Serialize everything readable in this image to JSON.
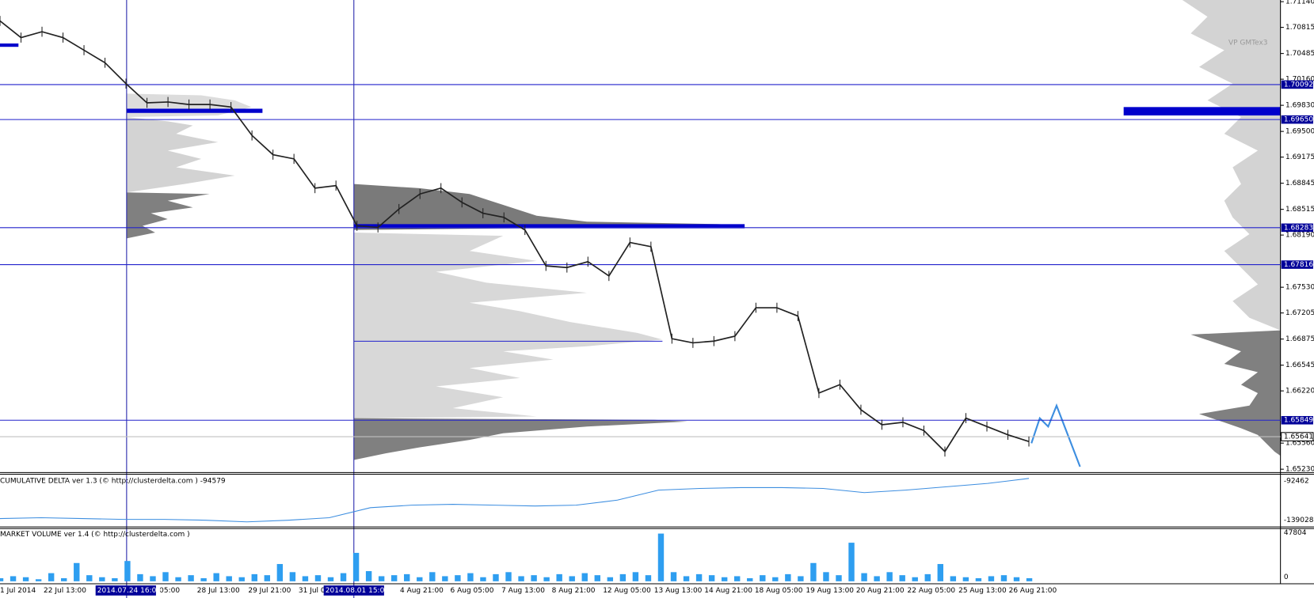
{
  "price_axis": {
    "ylim": [
      1.6523,
      1.7114
    ],
    "ticks": [
      {
        "value": 1.7114,
        "label": "1.71140"
      },
      {
        "value": 1.70815,
        "label": "1.70815"
      },
      {
        "value": 1.70485,
        "label": "1.70485"
      },
      {
        "value": 1.7016,
        "label": "1.70160"
      },
      {
        "value": 1.6983,
        "label": "1.69830"
      },
      {
        "value": 1.695,
        "label": "1.69500"
      },
      {
        "value": 1.69175,
        "label": "1.69175"
      },
      {
        "value": 1.68845,
        "label": "1.68845"
      },
      {
        "value": 1.68515,
        "label": "1.68515"
      },
      {
        "value": 1.6819,
        "label": "1.68190"
      },
      {
        "value": 1.6753,
        "label": "1.67530"
      },
      {
        "value": 1.67205,
        "label": "1.67205"
      },
      {
        "value": 1.66875,
        "label": "1.66875"
      },
      {
        "value": 1.66545,
        "label": "1.66545"
      },
      {
        "value": 1.6622,
        "label": "1.66220"
      },
      {
        "value": 1.6556,
        "label": "1.65560"
      },
      {
        "value": 1.6523,
        "label": "1.65230"
      }
    ]
  },
  "levels": [
    {
      "value": 1.70092,
      "label": "1.70092"
    },
    {
      "value": 1.6965,
      "label": "1.69650"
    },
    {
      "value": 1.68283,
      "label": "1.68283"
    },
    {
      "value": 1.67816,
      "label": "1.67816"
    },
    {
      "value": 1.65849,
      "label": "1.65849"
    }
  ],
  "current_price": {
    "value": 1.65641,
    "label": "1.65641"
  },
  "price": [
    1.70897,
    1.70686,
    1.7076,
    1.70686,
    1.70527,
    1.70368,
    1.70104,
    1.69861,
    1.69872,
    1.6984,
    1.6984,
    1.69808,
    1.69449,
    1.69206,
    1.69153,
    1.68783,
    1.68815,
    1.68307,
    1.68286,
    1.68519,
    1.68709,
    1.68783,
    1.68603,
    1.68466,
    1.68413,
    1.68254,
    1.678,
    1.67779,
    1.67853,
    1.67673,
    1.68096,
    1.68043,
    1.6688,
    1.66827,
    1.66849,
    1.66912,
    1.67271,
    1.67271,
    1.67166,
    1.66193,
    1.66299,
    1.65982,
    1.65792,
    1.65823,
    1.65718,
    1.65453,
    1.65876,
    1.6577,
    1.65665,
    1.6558
  ],
  "indicator_label": "VP GMTex3",
  "dates": [
    "1 Jul 2014",
    "22 Jul 13:00",
    "05:00",
    "28 Jul 13:00",
    "29 Jul 21:00",
    "31 Jul 0",
    "4 Aug 21:00",
    "6 Aug 05:00",
    "7 Aug 13:00",
    "8 Aug 21:00",
    "12 Aug 05:00",
    "13 Aug 13:00",
    "14 Aug 21:00",
    "18 Aug 05:00",
    "19 Aug 13:00",
    "20 Aug 21:00",
    "22 Aug 05:00",
    "25 Aug 13:00",
    "26 Aug 21:00"
  ],
  "highlighted_dates": [
    "2014.07.24 16:00",
    "2014.08.01 15:00"
  ],
  "delta": {
    "title": "CUMULATIVE DELTA ver 1.3 (© http://clusterdelta.com ) -94579",
    "ylim": [
      -139028,
      -92462
    ],
    "ticks": [
      -92462,
      -139028
    ],
    "values": [
      -137048,
      -136057,
      -137048,
      -138039,
      -138039,
      -139028,
      -141010,
      -139028,
      -136057,
      -124168,
      -121195,
      -120204,
      -121195,
      -122186,
      -121195,
      -115250,
      -103361,
      -101379,
      -100388,
      -100388,
      -101379,
      -106333,
      -103361,
      -99398,
      -95434,
      -89490
    ]
  },
  "volume": {
    "title": "MARKET VOLUME ver 1.4 (© http://clusterdelta.com )",
    "ylim": [
      0,
      47804
    ],
    "ticks": [
      47804,
      0
    ],
    "values": [
      3000,
      5000,
      4000,
      2000,
      8000,
      3000,
      18000,
      6000,
      4000,
      3000,
      20000,
      7000,
      5000,
      9000,
      4000,
      6000,
      3000,
      8000,
      5000,
      4000,
      7000,
      6000,
      17000,
      9000,
      5000,
      6000,
      4000,
      8000,
      28000,
      10000,
      5000,
      6000,
      7000,
      4000,
      9000,
      5000,
      6000,
      8000,
      4000,
      7000,
      9000,
      5000,
      6000,
      4000,
      7000,
      5000,
      8000,
      6000,
      4000,
      7000,
      9000,
      6000,
      47000,
      9000,
      5000,
      7000,
      6000,
      4000,
      5000,
      3000,
      6000,
      4000,
      7000,
      5000,
      18000,
      9000,
      6000,
      38000,
      8000,
      5000,
      9000,
      6000,
      4000,
      7000,
      17000,
      5000,
      4000,
      3000,
      5000,
      6000,
      4000,
      3000
    ]
  }
}
